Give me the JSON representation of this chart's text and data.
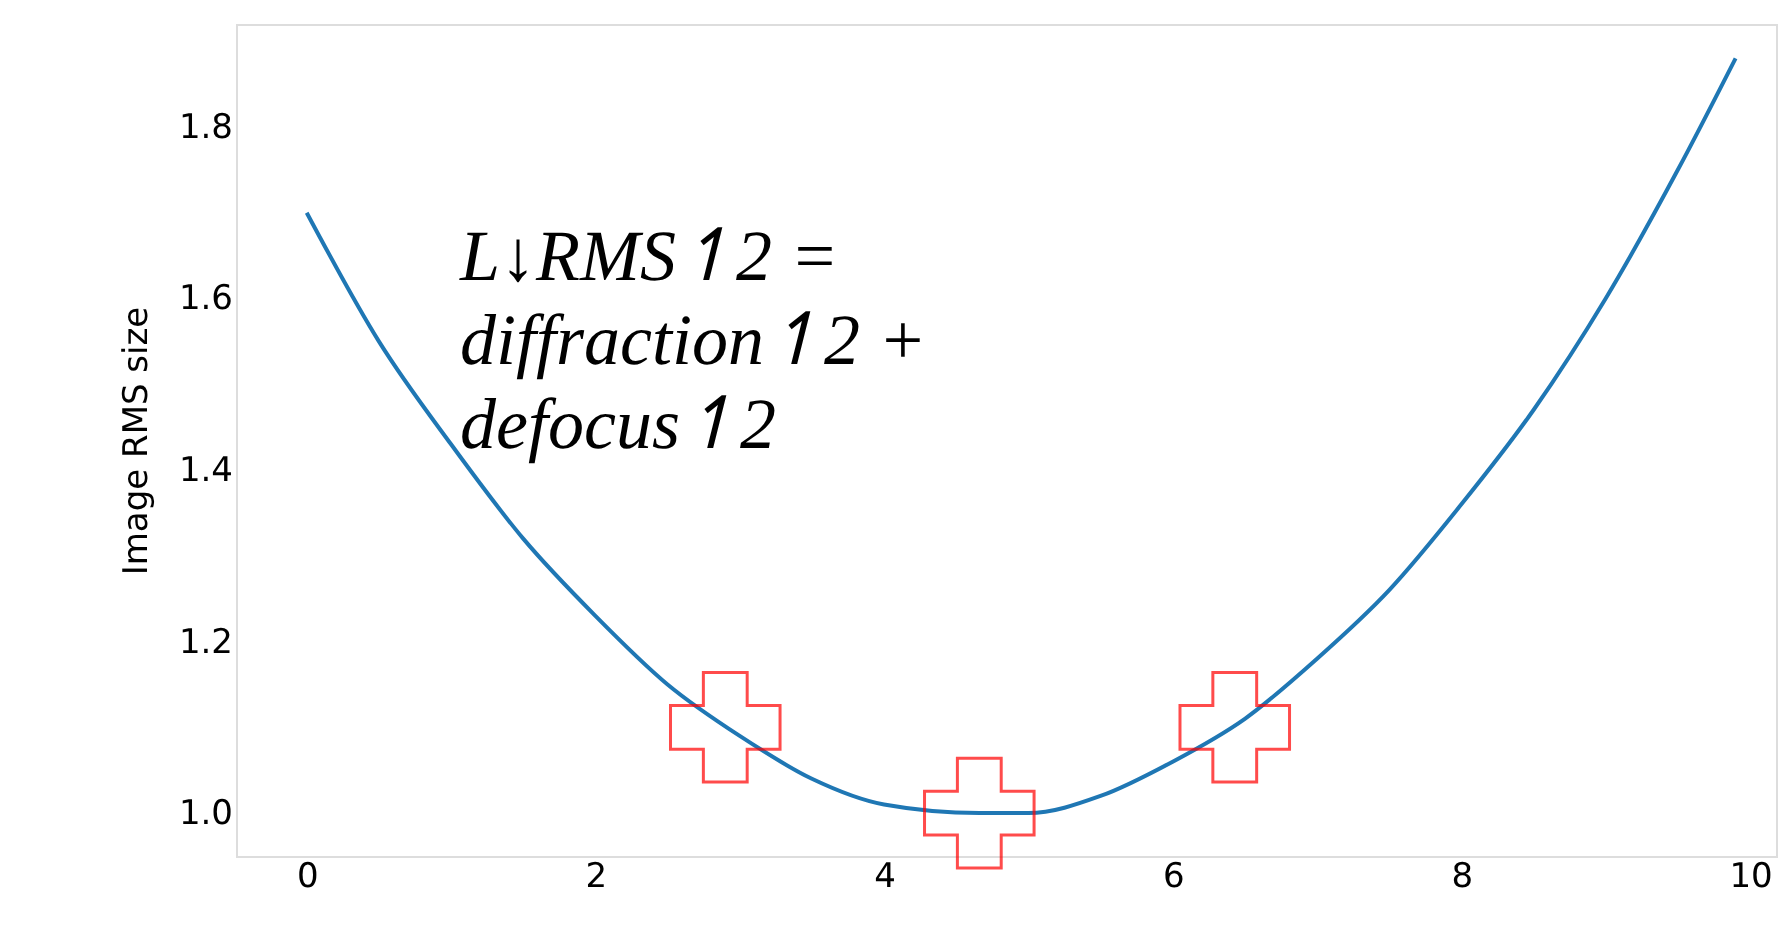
{
  "chart_data": {
    "type": "line",
    "ylabel": "Image RMS size",
    "annotations": [
      "L↓RMS↿2 =\ndiffraction↿2 +\ndefocus↿2"
    ],
    "xlim": [
      -0.49,
      10.18
    ],
    "ylim": [
      0.95,
      1.92
    ],
    "xticks": [
      0,
      2,
      4,
      6,
      8,
      10
    ],
    "yticks": [
      {
        "value": 1.0,
        "label": "1.0"
      },
      {
        "value": 1.2,
        "label": "1.2"
      },
      {
        "value": 1.4,
        "label": "1.4"
      },
      {
        "value": 1.6,
        "label": "1.6"
      },
      {
        "value": 1.8,
        "label": "1.8"
      }
    ],
    "grid": false,
    "series": [
      {
        "type": "line",
        "color": "#1f77b4",
        "line_style": "solid",
        "marker": "none",
        "x": [
          0,
          0.5,
          1,
          1.5,
          2,
          2.5,
          3,
          3.5,
          4,
          4.66,
          5,
          5.5,
          6,
          6.5,
          7,
          7.5,
          8,
          8.5,
          9,
          9.5,
          9.9
        ],
        "values": [
          1.7,
          1.55,
          1.43,
          1.32,
          1.23,
          1.15,
          1.09,
          1.04,
          1.01,
          1.0,
          1.0,
          1.02,
          1.06,
          1.11,
          1.18,
          1.26,
          1.36,
          1.47,
          1.6,
          1.75,
          1.88
        ]
      },
      {
        "type": "scatter",
        "color": "#ff0000",
        "marker": "cross",
        "x": [
          2.9,
          4.66,
          6.43
        ],
        "values": [
          1.1,
          1.0,
          1.1
        ]
      }
    ]
  }
}
